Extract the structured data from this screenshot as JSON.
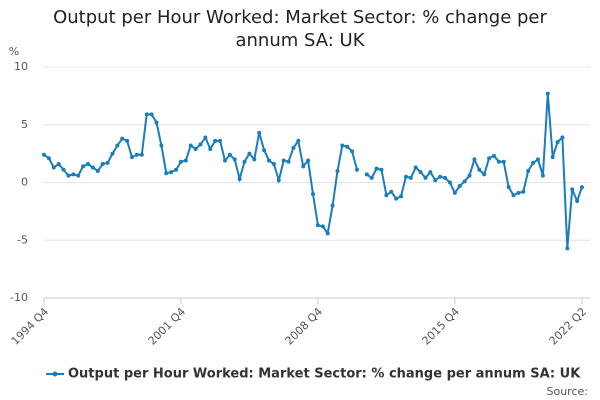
{
  "chart_data": {
    "type": "line",
    "title": "Output per Hour Worked: Market Sector: % change per annum SA: UK",
    "y_label": "%",
    "source": "Source:",
    "categories": [
      "1994 Q4",
      null,
      null,
      null,
      null,
      null,
      null,
      null,
      null,
      null,
      null,
      null,
      null,
      null,
      null,
      null,
      null,
      null,
      null,
      null,
      null,
      null,
      null,
      null,
      null,
      null,
      null,
      null,
      "2001 Q4",
      null,
      null,
      null,
      null,
      null,
      null,
      null,
      null,
      null,
      null,
      null,
      null,
      null,
      null,
      null,
      null,
      null,
      null,
      null,
      null,
      null,
      null,
      null,
      null,
      null,
      null,
      null,
      "2008 Q4",
      null,
      null,
      null,
      null,
      null,
      null,
      null,
      null,
      null,
      null,
      null,
      null,
      null,
      null,
      null,
      null,
      null,
      null,
      null,
      null,
      null,
      null,
      null,
      null,
      null,
      null,
      null,
      "2015 Q4",
      null,
      null,
      null,
      null,
      null,
      null,
      null,
      null,
      null,
      null,
      null,
      null,
      null,
      null,
      null,
      null,
      null,
      null,
      null,
      null,
      null,
      null,
      null,
      null,
      null,
      "2022 Q2"
    ],
    "series": [
      {
        "name": "Output per Hour Worked: Market Sector: % change per annum SA: UK",
        "color": "#1b7dba",
        "values": [
          2.4,
          2.1,
          1.3,
          1.6,
          1.1,
          0.6,
          0.7,
          0.6,
          1.4,
          1.6,
          1.3,
          1.0,
          1.6,
          1.7,
          2.5,
          3.2,
          3.8,
          3.6,
          2.2,
          2.4,
          2.4,
          5.9,
          5.9,
          5.2,
          3.2,
          0.8,
          0.9,
          1.1,
          1.8,
          1.9,
          3.2,
          2.9,
          3.3,
          3.9,
          2.9,
          3.6,
          3.6,
          1.9,
          2.4,
          2.0,
          0.3,
          1.8,
          2.5,
          2.0,
          4.3,
          2.8,
          1.9,
          1.6,
          0.2,
          1.9,
          1.8,
          3.0,
          3.6,
          1.4,
          1.9,
          -1.0,
          -3.7,
          -3.8,
          -4.4,
          -2.0,
          1.0,
          3.2,
          3.1,
          2.7,
          1.1,
          null,
          0.7,
          0.4,
          1.2,
          1.1,
          -1.1,
          -0.8,
          -1.4,
          -1.2,
          0.5,
          0.4,
          1.3,
          0.9,
          0.4,
          0.9,
          0.2,
          0.5,
          0.4,
          0.0,
          -0.9,
          -0.3,
          0.1,
          0.6,
          2.0,
          1.1,
          0.7,
          2.1,
          2.3,
          1.8,
          1.8,
          -0.4,
          -1.1,
          -0.9,
          -0.8,
          1.0,
          1.7,
          2.0,
          0.6,
          7.7,
          2.2,
          3.5,
          3.9,
          -5.7,
          -0.6,
          -1.6,
          -0.4
        ]
      }
    ],
    "ylim": [
      -10,
      10
    ],
    "yticks": [
      10,
      5,
      0,
      -5,
      -10
    ],
    "grid": true,
    "legend": "bottom"
  }
}
